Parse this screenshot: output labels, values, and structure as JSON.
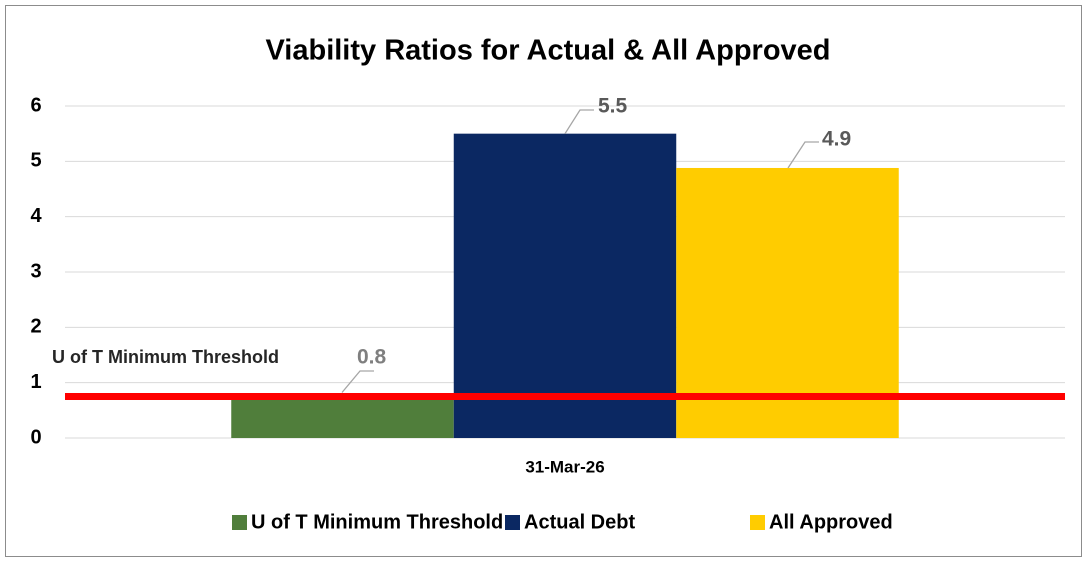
{
  "chart_data": {
    "type": "bar",
    "title": "Viability Ratios for Actual & All Approved",
    "categories": [
      "31-Mar-26"
    ],
    "series": [
      {
        "name": "U of T Minimum Threshold",
        "color": "#507e3b",
        "values": [
          0.75
        ],
        "value_labels": [
          "0.8"
        ]
      },
      {
        "name": "Actual Debt",
        "color": "#0b2862",
        "values": [
          5.5
        ],
        "value_labels": [
          "5.5"
        ]
      },
      {
        "name": "All Approved",
        "color": "#ffcc00",
        "values": [
          4.88
        ],
        "value_labels": [
          "4.9"
        ]
      }
    ],
    "threshold_color": "#ff0000",
    "ylim": [
      0,
      6
    ],
    "yticks": [
      0,
      1,
      2,
      3,
      4,
      5,
      6
    ],
    "grid": true,
    "legend": "bottom"
  }
}
